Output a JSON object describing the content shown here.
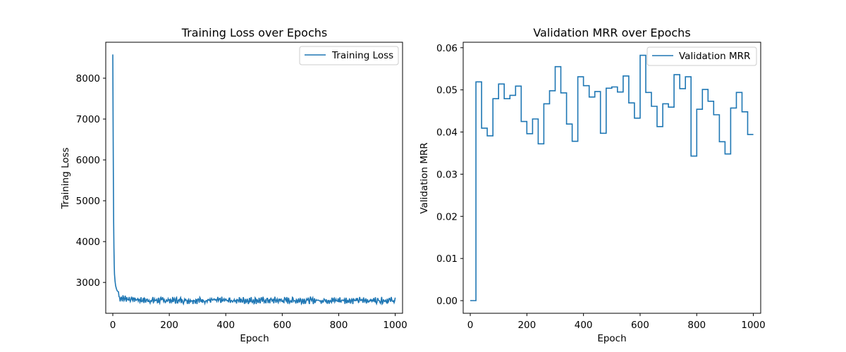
{
  "chart_data": [
    {
      "type": "line",
      "title": "Training Loss over Epochs",
      "xlabel": "Epoch",
      "ylabel": "Training Loss",
      "xlim": [
        -25,
        1026
      ],
      "ylim": [
        2245,
        8880
      ],
      "xticks": [
        0,
        200,
        400,
        600,
        800,
        1000
      ],
      "yticks": [
        3000,
        4000,
        5000,
        6000,
        7000,
        8000
      ],
      "legend": "upper right",
      "grid": false,
      "color": "#1f77b4",
      "series": [
        {
          "name": "Training Loss",
          "start_values": [
            [
              0,
              8580
            ],
            [
              1,
              7000
            ],
            [
              2,
              5600
            ],
            [
              3,
              4500
            ],
            [
              4,
              3850
            ],
            [
              5,
              3450
            ],
            [
              6,
              3200
            ],
            [
              8,
              3030
            ],
            [
              10,
              2920
            ],
            [
              13,
              2840
            ],
            [
              16,
              2790
            ],
            [
              20,
              2770
            ]
          ],
          "steady_mean": 2560,
          "steady_range": [
            2470,
            2660
          ],
          "x_end": 1000
        }
      ]
    },
    {
      "type": "line",
      "title": "Validation MRR over Epochs",
      "xlabel": "Epoch",
      "ylabel": "Validation MRR",
      "xlim": [
        -25,
        1026
      ],
      "ylim": [
        -0.003,
        0.0613
      ],
      "xticks": [
        0,
        200,
        400,
        600,
        800,
        1000
      ],
      "yticks": [
        0.0,
        0.01,
        0.02,
        0.03,
        0.04,
        0.05,
        0.06
      ],
      "legend": "upper right",
      "grid": false,
      "color": "#1f77b4",
      "step": "post",
      "series": [
        {
          "name": "Validation MRR",
          "x": [
            0,
            20,
            40,
            60,
            80,
            100,
            120,
            140,
            160,
            180,
            200,
            220,
            240,
            260,
            280,
            300,
            320,
            340,
            360,
            380,
            400,
            420,
            440,
            460,
            480,
            500,
            520,
            540,
            560,
            580,
            600,
            620,
            640,
            660,
            680,
            700,
            720,
            740,
            760,
            780,
            800,
            820,
            840,
            860,
            880,
            900,
            920,
            940,
            960,
            980,
            1000
          ],
          "values": [
            0.0,
            0.0519,
            0.0409,
            0.0391,
            0.0479,
            0.0514,
            0.0479,
            0.0487,
            0.0509,
            0.0425,
            0.0396,
            0.0431,
            0.0372,
            0.0467,
            0.0498,
            0.0555,
            0.0493,
            0.0419,
            0.0378,
            0.0531,
            0.051,
            0.0483,
            0.0496,
            0.0397,
            0.0504,
            0.0507,
            0.0495,
            0.0533,
            0.0469,
            0.0433,
            0.0582,
            0.0494,
            0.0461,
            0.0413,
            0.0467,
            0.0459,
            0.0536,
            0.0503,
            0.0531,
            0.0343,
            0.0454,
            0.0501,
            0.0473,
            0.0441,
            0.0377,
            0.0348,
            0.0457,
            0.0494,
            0.0448,
            0.0394,
            0.0394
          ]
        }
      ]
    }
  ]
}
